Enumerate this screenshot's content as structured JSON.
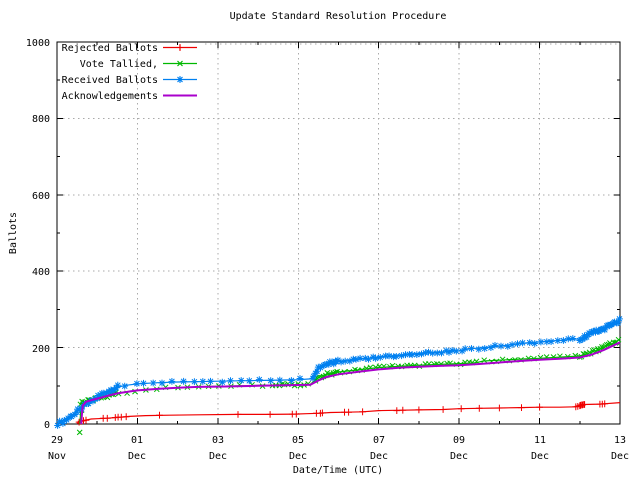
{
  "chart_data": {
    "type": "line",
    "title": "Update Standard Resolution Procedure",
    "xlabel": "Date/Time (UTC)",
    "ylabel": "Ballots",
    "grid": true,
    "grid_color": "#aaaaaa",
    "legend_position": "top-left-inside",
    "x_axis": {
      "range_days": [
        0,
        14
      ],
      "major_ticks": [
        {
          "day": 0,
          "l1": "29",
          "l2": "Nov"
        },
        {
          "day": 2,
          "l1": "01",
          "l2": "Dec"
        },
        {
          "day": 4,
          "l1": "03",
          "l2": "Dec"
        },
        {
          "day": 6,
          "l1": "05",
          "l2": "Dec"
        },
        {
          "day": 8,
          "l1": "07",
          "l2": "Dec"
        },
        {
          "day": 10,
          "l1": "09",
          "l2": "Dec"
        },
        {
          "day": 12,
          "l1": "11",
          "l2": "Dec"
        },
        {
          "day": 14,
          "l1": "13",
          "l2": "Dec"
        }
      ],
      "minor_tick_days": [
        1,
        3,
        5,
        7,
        9,
        11,
        13
      ],
      "gridline_days": [
        2,
        4,
        6,
        8,
        10,
        12
      ]
    },
    "y_axis": {
      "range": [
        0,
        1000
      ],
      "major_ticks": [
        {
          "value": 0,
          "label": "0"
        },
        {
          "value": 200,
          "label": "200"
        },
        {
          "value": 400,
          "label": "400"
        },
        {
          "value": 600,
          "label": "600"
        },
        {
          "value": 800,
          "label": "800"
        },
        {
          "value": 1000,
          "label": "1000"
        }
      ],
      "minor_tick_values": [
        100,
        300,
        500,
        700,
        900
      ],
      "gridline_values": [
        200,
        400,
        600,
        800,
        1000
      ]
    },
    "series": [
      {
        "name": "Rejected Ballots",
        "color": "#f00000",
        "marker": "plus",
        "line_width": 1.2,
        "points": [
          [
            0.5,
            1
          ],
          [
            0.55,
            5
          ],
          [
            0.62,
            8
          ],
          [
            0.7,
            10
          ],
          [
            0.85,
            13
          ],
          [
            1.0,
            14
          ],
          [
            1.2,
            15
          ],
          [
            1.5,
            17
          ],
          [
            1.8,
            20
          ],
          [
            2.2,
            22
          ],
          [
            2.8,
            23
          ],
          [
            3.5,
            24
          ],
          [
            4.5,
            25
          ],
          [
            5.3,
            25
          ],
          [
            5.9,
            26
          ],
          [
            6.2,
            27
          ],
          [
            6.5,
            28
          ],
          [
            6.8,
            30
          ],
          [
            7.2,
            31
          ],
          [
            7.6,
            32
          ],
          [
            8.0,
            35
          ],
          [
            8.6,
            36
          ],
          [
            9.0,
            37
          ],
          [
            9.6,
            38
          ],
          [
            10.0,
            40
          ],
          [
            10.5,
            41
          ],
          [
            11.0,
            42
          ],
          [
            11.5,
            43
          ],
          [
            12.0,
            44
          ],
          [
            12.5,
            44
          ],
          [
            12.9,
            45
          ],
          [
            13.0,
            48
          ],
          [
            13.05,
            50
          ],
          [
            13.1,
            51
          ],
          [
            13.5,
            52
          ],
          [
            13.6,
            53
          ],
          [
            14.0,
            56
          ]
        ],
        "markers": [
          [
            0.55,
            5
          ],
          [
            0.6,
            7
          ],
          [
            0.66,
            9
          ],
          [
            0.72,
            10
          ],
          [
            1.15,
            15
          ],
          [
            1.25,
            15
          ],
          [
            1.45,
            17
          ],
          [
            1.52,
            18
          ],
          [
            1.6,
            18
          ],
          [
            1.72,
            19
          ],
          [
            2.55,
            23
          ],
          [
            4.5,
            25
          ],
          [
            5.3,
            25
          ],
          [
            5.85,
            26
          ],
          [
            5.95,
            26
          ],
          [
            6.45,
            28
          ],
          [
            6.55,
            28
          ],
          [
            6.6,
            29
          ],
          [
            7.15,
            31
          ],
          [
            7.25,
            31
          ],
          [
            7.6,
            32
          ],
          [
            8.45,
            35
          ],
          [
            8.6,
            36
          ],
          [
            9.0,
            37
          ],
          [
            9.6,
            38
          ],
          [
            10.05,
            40
          ],
          [
            10.5,
            41
          ],
          [
            11.0,
            42
          ],
          [
            11.55,
            43
          ],
          [
            12.0,
            44
          ],
          [
            12.9,
            45
          ],
          [
            12.95,
            46
          ],
          [
            13.0,
            48
          ],
          [
            13.02,
            49
          ],
          [
            13.05,
            50
          ],
          [
            13.07,
            50
          ],
          [
            13.1,
            51
          ],
          [
            13.12,
            51
          ],
          [
            13.5,
            52
          ],
          [
            13.56,
            52
          ],
          [
            13.62,
            53
          ]
        ]
      },
      {
        "name": "Vote Tallied,",
        "color": "#00b800",
        "marker": "cross",
        "line_width": 1.2,
        "points": [
          [
            0.57,
            0
          ],
          [
            0.6,
            55
          ],
          [
            0.65,
            58
          ],
          [
            0.75,
            61
          ],
          [
            0.9,
            64
          ],
          [
            1.0,
            66
          ],
          [
            1.2,
            72
          ],
          [
            1.4,
            78
          ],
          [
            1.6,
            82
          ],
          [
            1.8,
            85
          ],
          [
            2.0,
            88
          ],
          [
            2.5,
            92
          ],
          [
            3.0,
            95
          ],
          [
            3.5,
            97
          ],
          [
            4.0,
            99
          ],
          [
            4.5,
            100
          ],
          [
            5.0,
            101
          ],
          [
            5.5,
            102
          ],
          [
            6.0,
            103
          ],
          [
            6.3,
            104
          ],
          [
            6.45,
            118
          ],
          [
            6.6,
            127
          ],
          [
            6.8,
            132
          ],
          [
            7.0,
            136
          ],
          [
            7.5,
            142
          ],
          [
            8.0,
            148
          ],
          [
            8.5,
            151
          ],
          [
            9.0,
            154
          ],
          [
            9.5,
            156
          ],
          [
            10.0,
            158
          ],
          [
            10.4,
            160
          ],
          [
            10.6,
            165
          ],
          [
            11.0,
            167
          ],
          [
            11.5,
            170
          ],
          [
            12.0,
            172
          ],
          [
            12.5,
            175
          ],
          [
            13.0,
            178
          ],
          [
            13.2,
            184
          ],
          [
            13.5,
            196
          ],
          [
            13.8,
            210
          ],
          [
            14.0,
            222
          ]
        ],
        "marker_segments": [
          [
            0.57,
            0.66,
            0.018,
            22,
            0.008
          ],
          [
            0.7,
            1.55,
            0.055,
            4,
            0.02
          ],
          [
            1.7,
            5.25,
            0.26,
            3,
            0.05
          ],
          [
            5.35,
            6.3,
            0.08,
            3,
            0.02
          ],
          [
            6.42,
            7.0,
            0.05,
            4,
            0.015
          ],
          [
            7.05,
            10.35,
            0.11,
            3,
            0.03
          ],
          [
            10.45,
            12.95,
            0.16,
            3,
            0.04
          ],
          [
            13.0,
            13.98,
            0.04,
            4,
            0.012
          ]
        ]
      },
      {
        "name": "Received Ballots",
        "color": "#0080f0",
        "marker": "asterisk",
        "line_width": 1.2,
        "points": [
          [
            0,
            0
          ],
          [
            0.1,
            4
          ],
          [
            0.2,
            10
          ],
          [
            0.3,
            17
          ],
          [
            0.45,
            28
          ],
          [
            0.6,
            40
          ],
          [
            0.75,
            52
          ],
          [
            0.9,
            62
          ],
          [
            1.0,
            70
          ],
          [
            1.15,
            80
          ],
          [
            1.3,
            88
          ],
          [
            1.5,
            96
          ],
          [
            1.7,
            101
          ],
          [
            2.0,
            105
          ],
          [
            2.5,
            108
          ],
          [
            3.0,
            110
          ],
          [
            3.5,
            111
          ],
          [
            4.0,
            112
          ],
          [
            4.5,
            113
          ],
          [
            5.0,
            114
          ],
          [
            5.5,
            115
          ],
          [
            6.0,
            116
          ],
          [
            6.3,
            118
          ],
          [
            6.4,
            130
          ],
          [
            6.5,
            144
          ],
          [
            6.65,
            154
          ],
          [
            6.8,
            159
          ],
          [
            7.0,
            163
          ],
          [
            7.5,
            169
          ],
          [
            8.0,
            175
          ],
          [
            8.5,
            180
          ],
          [
            9.0,
            185
          ],
          [
            9.5,
            188
          ],
          [
            10.0,
            192
          ],
          [
            10.3,
            197
          ],
          [
            10.6,
            200
          ],
          [
            11.0,
            204
          ],
          [
            11.5,
            210
          ],
          [
            12.0,
            215
          ],
          [
            12.5,
            219
          ],
          [
            13.0,
            223
          ],
          [
            13.2,
            232
          ],
          [
            13.5,
            245
          ],
          [
            13.8,
            259
          ],
          [
            14.0,
            272
          ]
        ],
        "marker_segments": [
          [
            0.03,
            1.55,
            0.05,
            5,
            0.02
          ],
          [
            1.7,
            6.25,
            0.24,
            3,
            0.05
          ],
          [
            6.35,
            7.0,
            0.04,
            5,
            0.015
          ],
          [
            7.05,
            9.95,
            0.1,
            3,
            0.03
          ],
          [
            10.05,
            12.95,
            0.14,
            3,
            0.04
          ],
          [
            13.0,
            13.98,
            0.035,
            5,
            0.012
          ]
        ]
      },
      {
        "name": "Acknowledgements",
        "color": "#aa00cc",
        "marker": "none",
        "line_width": 2,
        "points": [
          [
            0.6,
            0
          ],
          [
            0.64,
            48
          ],
          [
            0.72,
            58
          ],
          [
            0.9,
            64
          ],
          [
            1.1,
            69
          ],
          [
            1.3,
            75
          ],
          [
            1.5,
            80
          ],
          [
            1.8,
            85
          ],
          [
            2.0,
            88
          ],
          [
            2.5,
            92
          ],
          [
            3.0,
            95
          ],
          [
            3.5,
            97
          ],
          [
            4.0,
            98
          ],
          [
            4.5,
            99
          ],
          [
            5.0,
            100
          ],
          [
            5.5,
            101
          ],
          [
            6.0,
            102
          ],
          [
            6.3,
            103
          ],
          [
            6.5,
            114
          ],
          [
            6.7,
            123
          ],
          [
            7.0,
            130
          ],
          [
            7.5,
            137
          ],
          [
            8.0,
            143
          ],
          [
            8.5,
            147
          ],
          [
            9.0,
            150
          ],
          [
            9.5,
            152
          ],
          [
            10.0,
            154
          ],
          [
            10.5,
            157
          ],
          [
            11.0,
            161
          ],
          [
            11.5,
            165
          ],
          [
            12.0,
            168
          ],
          [
            12.5,
            171
          ],
          [
            13.0,
            174
          ],
          [
            13.3,
            182
          ],
          [
            13.6,
            194
          ],
          [
            14.0,
            214
          ]
        ]
      }
    ]
  }
}
